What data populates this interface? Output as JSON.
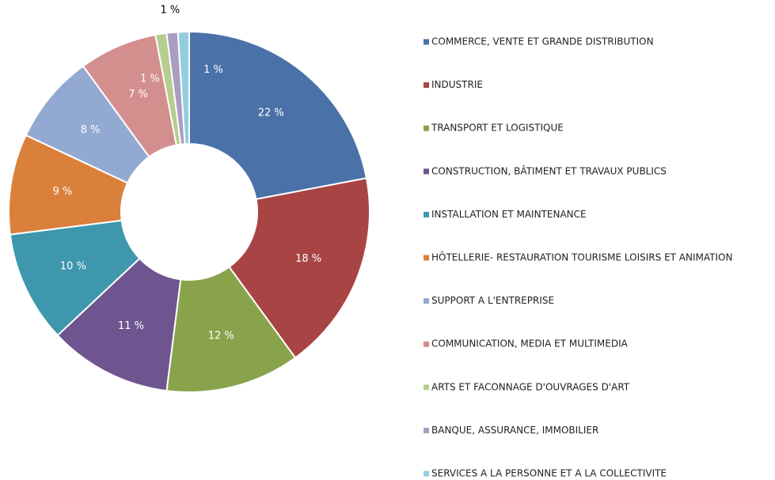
{
  "chart_data": {
    "type": "donut",
    "categories": [
      "COMMERCE, VENTE ET GRANDE DISTRIBUTION",
      "INDUSTRIE",
      "TRANSPORT ET LOGISTIQUE",
      "CONSTRUCTION, BÂTIMENT ET TRAVAUX PUBLICS",
      "INSTALLATION ET MAINTENANCE",
      "HÔTELLERIE- RESTAURATION TOURISME LOISIRS ET ANIMATION",
      "SUPPORT A L'ENTREPRISE",
      "COMMUNICATION, MEDIA ET MULTIMEDIA",
      "ARTS ET FACONNAGE D'OUVRAGES D'ART",
      "BANQUE, ASSURANCE, IMMOBILIER",
      "SERVICES A LA PERSONNE ET A LA COLLECTIVITE"
    ],
    "values": [
      22,
      18,
      12,
      11,
      10,
      9,
      8,
      7,
      1,
      1,
      1
    ],
    "value_labels": [
      "22 %",
      "18 %",
      "12 %",
      "11 %",
      "10 %",
      "9 %",
      "8 %",
      "7 %",
      "1 %",
      "1 %",
      "1 %"
    ],
    "colors": [
      "#4a72a8",
      "#a84443",
      "#88a34a",
      "#6e5590",
      "#3e97ad",
      "#da803b",
      "#92a9d2",
      "#d38f8e",
      "#b5cd8e",
      "#a99dc1",
      "#93cde0"
    ],
    "legend": "right"
  }
}
